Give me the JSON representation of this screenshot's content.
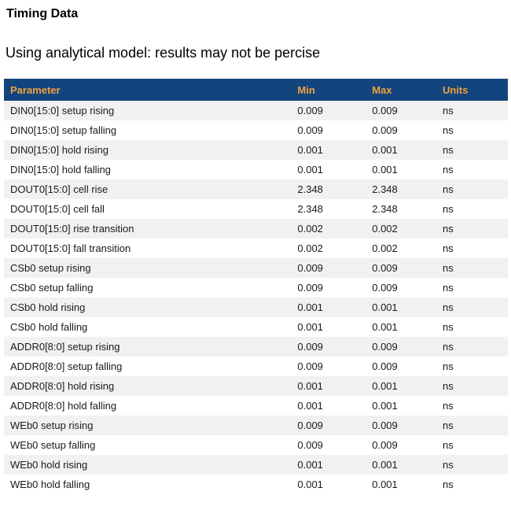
{
  "page": {
    "title": "Timing Data",
    "subtitle": "Using analytical model: results may not be percise"
  },
  "colors": {
    "header_bg": "#12447E",
    "header_text": "#F0A23C",
    "row_stripe": "#F0F2EF",
    "body_text": "#1A1A1A"
  },
  "table": {
    "columns": [
      "Parameter",
      "Min",
      "Max",
      "Units"
    ],
    "rows": [
      {
        "parameter": "DIN0[15:0] setup rising",
        "min": "0.009",
        "max": "0.009",
        "units": "ns"
      },
      {
        "parameter": "DIN0[15:0] setup falling",
        "min": "0.009",
        "max": "0.009",
        "units": "ns"
      },
      {
        "parameter": "DIN0[15:0] hold rising",
        "min": "0.001",
        "max": "0.001",
        "units": "ns"
      },
      {
        "parameter": "DIN0[15:0] hold falling",
        "min": "0.001",
        "max": "0.001",
        "units": "ns"
      },
      {
        "parameter": "DOUT0[15:0] cell rise",
        "min": "2.348",
        "max": "2.348",
        "units": "ns"
      },
      {
        "parameter": "DOUT0[15:0] cell fall",
        "min": "2.348",
        "max": "2.348",
        "units": "ns"
      },
      {
        "parameter": "DOUT0[15:0] rise transition",
        "min": "0.002",
        "max": "0.002",
        "units": "ns"
      },
      {
        "parameter": "DOUT0[15:0] fall transition",
        "min": "0.002",
        "max": "0.002",
        "units": "ns"
      },
      {
        "parameter": "CSb0 setup rising",
        "min": "0.009",
        "max": "0.009",
        "units": "ns"
      },
      {
        "parameter": "CSb0 setup falling",
        "min": "0.009",
        "max": "0.009",
        "units": "ns"
      },
      {
        "parameter": "CSb0 hold rising",
        "min": "0.001",
        "max": "0.001",
        "units": "ns"
      },
      {
        "parameter": "CSb0 hold falling",
        "min": "0.001",
        "max": "0.001",
        "units": "ns"
      },
      {
        "parameter": "ADDR0[8:0] setup rising",
        "min": "0.009",
        "max": "0.009",
        "units": "ns"
      },
      {
        "parameter": "ADDR0[8:0] setup falling",
        "min": "0.009",
        "max": "0.009",
        "units": "ns"
      },
      {
        "parameter": "ADDR0[8:0] hold rising",
        "min": "0.001",
        "max": "0.001",
        "units": "ns"
      },
      {
        "parameter": "ADDR0[8:0] hold falling",
        "min": "0.001",
        "max": "0.001",
        "units": "ns"
      },
      {
        "parameter": "WEb0 setup rising",
        "min": "0.009",
        "max": "0.009",
        "units": "ns"
      },
      {
        "parameter": "WEb0 setup falling",
        "min": "0.009",
        "max": "0.009",
        "units": "ns"
      },
      {
        "parameter": "WEb0 hold rising",
        "min": "0.001",
        "max": "0.001",
        "units": "ns"
      },
      {
        "parameter": "WEb0 hold falling",
        "min": "0.001",
        "max": "0.001",
        "units": "ns"
      }
    ]
  }
}
